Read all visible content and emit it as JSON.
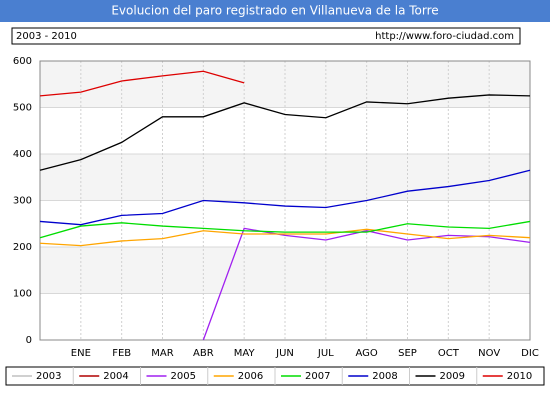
{
  "chart_data": {
    "type": "line",
    "title": "Evolucion del paro registrado en Villanueva de la Torre",
    "period": "2003 - 2010",
    "source": "http://www.foro-ciudad.com",
    "categories": [
      null,
      "ENE",
      "FEB",
      "MAR",
      "ABR",
      "MAY",
      "JUN",
      "JUL",
      "AGO",
      "SEP",
      "OCT",
      "NOV",
      "DIC"
    ],
    "ylim": [
      0,
      600
    ],
    "yticks": [
      0,
      100,
      200,
      300,
      400,
      500,
      600
    ],
    "grid": true,
    "series": [
      {
        "name": "2003",
        "color": "#c0c0c0",
        "values": [
          null,
          null,
          null,
          null,
          null,
          null,
          null,
          null,
          null,
          null,
          null,
          null,
          null
        ]
      },
      {
        "name": "2004",
        "color": "#b00000",
        "values": [
          null,
          null,
          null,
          null,
          null,
          null,
          null,
          null,
          null,
          null,
          null,
          null,
          null
        ]
      },
      {
        "name": "2005",
        "color": "#a020f0",
        "values": [
          null,
          null,
          null,
          null,
          0,
          240,
          225,
          215,
          235,
          215,
          225,
          222,
          210
        ]
      },
      {
        "name": "2006",
        "color": "#ffa500",
        "values": [
          208,
          203,
          213,
          218,
          235,
          228,
          228,
          228,
          238,
          228,
          218,
          225,
          220
        ]
      },
      {
        "name": "2007",
        "color": "#00dd00",
        "values": [
          220,
          245,
          252,
          245,
          240,
          235,
          232,
          232,
          232,
          250,
          243,
          240,
          255
        ]
      },
      {
        "name": "2008",
        "color": "#0000cc",
        "values": [
          255,
          248,
          268,
          272,
          300,
          295,
          288,
          285,
          300,
          320,
          330,
          343,
          365
        ]
      },
      {
        "name": "2009",
        "color": "#000000",
        "values": [
          365,
          388,
          425,
          480,
          480,
          510,
          485,
          478,
          512,
          508,
          520,
          527,
          525
        ]
      },
      {
        "name": "2010",
        "color": "#dd0000",
        "values": [
          525,
          533,
          557,
          568,
          578,
          553,
          null,
          null,
          null,
          null,
          null,
          null,
          null
        ]
      }
    ]
  }
}
